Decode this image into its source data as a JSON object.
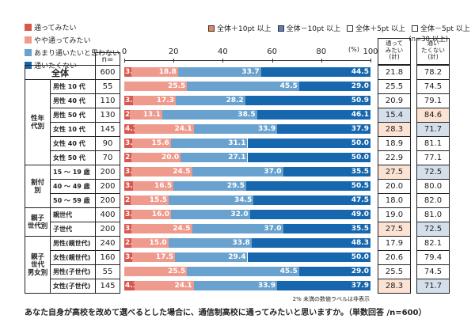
{
  "chart_data": {
    "type": "bar",
    "stacked": true,
    "orientation": "horizontal",
    "legend": [
      "通ってみたい",
      "やや通ってみたい",
      "あまり通いたいと思わない",
      "通いたくない"
    ],
    "colors": [
      "#d9574c",
      "#ee9a8c",
      "#6aa2cf",
      "#1667ae"
    ],
    "highlight_legend": [
      {
        "label": "全体＋10pt 以上",
        "color": "#e0895e"
      },
      {
        "label": "全体－10pt 以上",
        "color": "#5b7fb8"
      },
      {
        "label": "全体＋5pt 以上",
        "color": "#ffffff"
      },
      {
        "label": "全体－5pt 以上",
        "color": "#ffffff"
      }
    ],
    "highlight_note": "(n=30 以上)",
    "highlight_colors": {
      "up": "#fbe2d2",
      "down": "#d5dfec"
    },
    "unit": "(%)",
    "xlim": [
      0,
      100
    ],
    "xticks": [
      "0",
      "20",
      "40",
      "60",
      "80",
      "100"
    ],
    "n_header": "n=",
    "col_want": "通って\nみたい\n(計)",
    "col_notwant": "通い\nたくない\n(計)",
    "groups": [
      {
        "label": "全体",
        "rows": [
          0
        ]
      },
      {
        "label": "性年\n代別",
        "rows": [
          1,
          2,
          3,
          4,
          5,
          6
        ]
      },
      {
        "label": "割付\n別",
        "rows": [
          7,
          8,
          9
        ]
      },
      {
        "label": "親子\n世代別",
        "rows": [
          10,
          11
        ]
      },
      {
        "label": "親子\n世代\n男女別",
        "rows": [
          12,
          13,
          14,
          15
        ]
      }
    ],
    "rows": [
      {
        "label": "全体",
        "n": "600",
        "values": [
          3.0,
          18.8,
          33.7,
          44.5
        ],
        "want": "21.8",
        "notwant": "78.2",
        "hw": "",
        "hn": ""
      },
      {
        "label": "男性 10 代",
        "n": "55",
        "values": [
          0,
          25.5,
          45.5,
          29.0
        ],
        "want": "25.5",
        "notwant": "74.5",
        "hw": "",
        "hn": ""
      },
      {
        "label": "男性 40 代",
        "n": "110",
        "values": [
          3.6,
          17.3,
          28.2,
          50.9
        ],
        "want": "20.9",
        "notwant": "79.1",
        "hw": "",
        "hn": ""
      },
      {
        "label": "男性 50 代",
        "n": "130",
        "values": [
          2.3,
          13.1,
          38.5,
          46.1
        ],
        "want": "15.4",
        "notwant": "84.6",
        "hw": "down",
        "hn": "up"
      },
      {
        "label": "女性 10 代",
        "n": "145",
        "values": [
          4.1,
          24.1,
          33.9,
          37.9
        ],
        "want": "28.3",
        "notwant": "71.7",
        "hw": "up",
        "hn": "down"
      },
      {
        "label": "女性 40 代",
        "n": "90",
        "values": [
          3.3,
          15.6,
          31.1,
          50.0
        ],
        "want": "18.9",
        "notwant": "81.1",
        "hw": "",
        "hn": ""
      },
      {
        "label": "女性 50 代",
        "n": "70",
        "values": [
          2.9,
          20.0,
          27.1,
          50.0
        ],
        "want": "22.9",
        "notwant": "77.1",
        "hw": "",
        "hn": ""
      },
      {
        "label": "15 ～ 19 歳",
        "n": "200",
        "values": [
          3.0,
          24.5,
          37.0,
          35.5
        ],
        "want": "27.5",
        "notwant": "72.5",
        "hw": "up",
        "hn": "down"
      },
      {
        "label": "40 ～ 49 歳",
        "n": "200",
        "values": [
          3.5,
          16.5,
          29.5,
          50.5
        ],
        "want": "20.0",
        "notwant": "80.0",
        "hw": "",
        "hn": ""
      },
      {
        "label": "50 ～ 59 歳",
        "n": "200",
        "values": [
          2.5,
          15.5,
          34.5,
          47.5
        ],
        "want": "18.0",
        "notwant": "82.0",
        "hw": "",
        "hn": ""
      },
      {
        "label": "親世代",
        "n": "400",
        "values": [
          3.0,
          16.0,
          32.0,
          49.0
        ],
        "want": "19.0",
        "notwant": "81.0",
        "hw": "",
        "hn": ""
      },
      {
        "label": "子世代",
        "n": "200",
        "values": [
          3.0,
          24.5,
          37.0,
          35.5
        ],
        "want": "27.5",
        "notwant": "72.5",
        "hw": "up",
        "hn": "down"
      },
      {
        "label": "男性(親世代)",
        "n": "240",
        "values": [
          2.9,
          15.0,
          33.8,
          48.3
        ],
        "want": "17.9",
        "notwant": "82.1",
        "hw": "",
        "hn": ""
      },
      {
        "label": "女性(親世代)",
        "n": "160",
        "values": [
          3.1,
          17.5,
          29.4,
          50.0
        ],
        "want": "20.6",
        "notwant": "79.4",
        "hw": "",
        "hn": ""
      },
      {
        "label": "男性(子世代)",
        "n": "55",
        "values": [
          0,
          25.5,
          45.5,
          29.0
        ],
        "want": "25.5",
        "notwant": "74.5",
        "hw": "",
        "hn": ""
      },
      {
        "label": "女性(子世代)",
        "n": "145",
        "values": [
          4.1,
          24.1,
          33.9,
          37.9
        ],
        "want": "28.3",
        "notwant": "71.7",
        "hw": "up",
        "hn": "down"
      }
    ],
    "footnote": "2% 未満の数値ラベルは非表示",
    "title": "あなた自身が高校を改めて選べるとした場合に、通信制高校に通ってみたいと思いますか。（単数回答 /n=600）"
  }
}
